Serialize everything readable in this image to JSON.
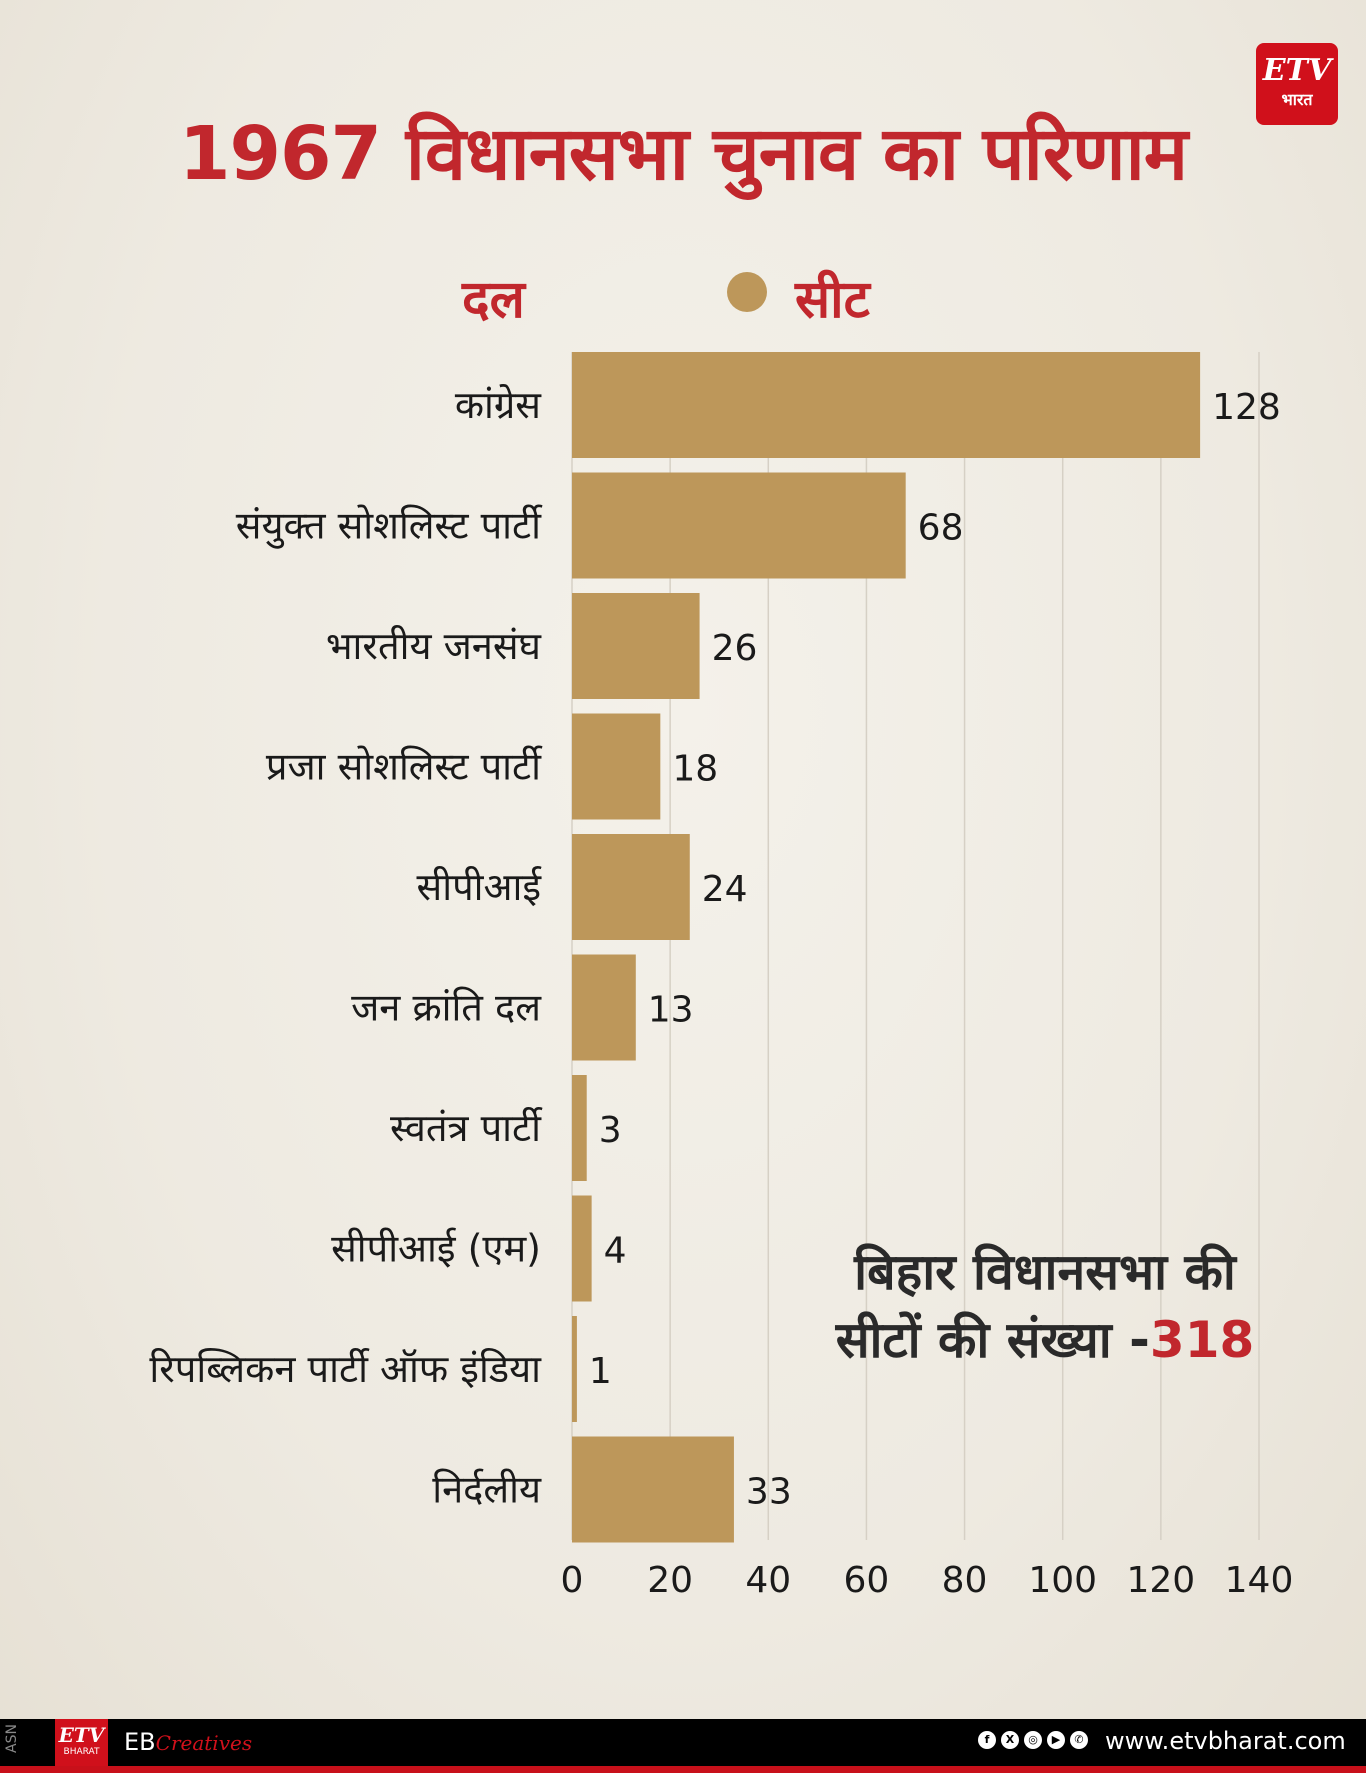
{
  "title": "1967 विधानसभा चुनाव का परिणाम",
  "logo": {
    "text": "ETV",
    "sub": "भारत"
  },
  "legend": {
    "left_label": "दल",
    "series_label": "सीट",
    "marker_color": "#bd975a"
  },
  "note": {
    "line1": "बिहार विधानसभा की",
    "line2": "सीटों की संख्या -",
    "value": "318"
  },
  "chart_data": {
    "type": "bar",
    "orientation": "horizontal",
    "categories": [
      "कांग्रेस",
      "संयुक्त सोशलिस्ट पार्टी",
      "भारतीय जनसंघ",
      "प्रजा सोशलिस्ट पार्टी",
      "सीपीआई",
      "जन क्रांति दल",
      "स्वतंत्र पार्टी",
      "सीपीआई (एम)",
      "रिपब्लिकन पार्टी ऑफ इंडिया",
      "निर्दलीय"
    ],
    "series": [
      {
        "name": "सीट",
        "values": [
          128,
          68,
          26,
          18,
          24,
          13,
          3,
          4,
          1,
          33
        ]
      }
    ],
    "xlim": [
      0,
      140
    ],
    "xticks": [
      "0",
      "20",
      "40",
      "60",
      "80",
      "100",
      "120",
      "140"
    ],
    "grid": "vertical",
    "bar_color": "#bd975a"
  },
  "footer": {
    "side_text": "ASN",
    "logo_sub": "BHARAT",
    "brand": "EB",
    "brand_script": "Creatives",
    "social": [
      "f",
      "X",
      "ig",
      "yt",
      "wa"
    ],
    "url": "www.etvbharat.com"
  },
  "colors": {
    "accent": "#c1272d",
    "background": "#f1ede5"
  }
}
